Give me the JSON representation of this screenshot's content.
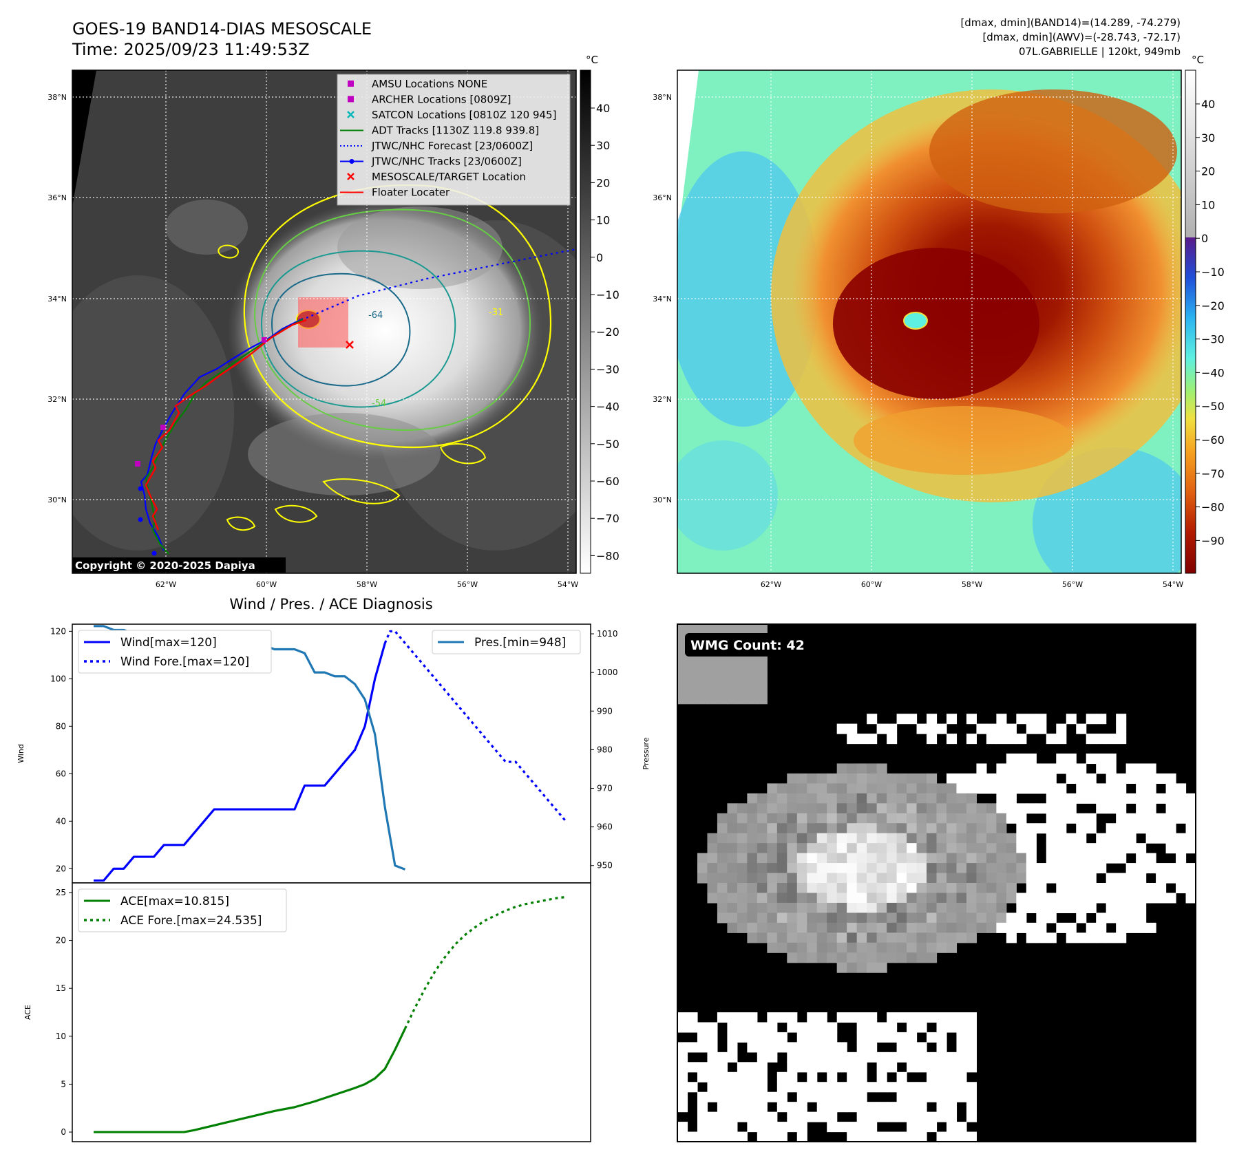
{
  "header": {
    "title_line1": "GOES-19 BAND14-DIAS MESOSCALE",
    "title_line2": "Time: 2025/09/23 11:49:53Z",
    "info_line1": "[dmax, dmin](BAND14)=(14.289, -74.279)",
    "info_line2": "[dmax, dmin](AWV)=(-28.743, -72.17)",
    "info_line3": "07L.GABRIELLE | 120kt, 949mb"
  },
  "map": {
    "lat_ticks": [
      "38°N",
      "36°N",
      "34°N",
      "32°N",
      "30°N"
    ],
    "lon_ticks": [
      "62°W",
      "60°W",
      "58°W",
      "56°W",
      "54°W"
    ],
    "copyright": "Copyright © 2020-2025 Dapiya",
    "colorbar_unit": "°C",
    "colorbar_ticks_left": [
      "40",
      "30",
      "20",
      "10",
      "0",
      "−10",
      "−20",
      "−30",
      "−40",
      "−50",
      "−60",
      "−70",
      "−80"
    ],
    "colorbar_ticks_right": [
      "40",
      "30",
      "20",
      "10",
      "0",
      "−10",
      "−20",
      "−30",
      "−40",
      "−50",
      "−60",
      "−70",
      "−80",
      "−90"
    ],
    "contour_label_1": "-64",
    "contour_label_2": "-31",
    "contour_label_3": "-54",
    "legend": [
      {
        "label": "AMSU Locations NONE",
        "color": "#c000c0",
        "marker": "square"
      },
      {
        "label": "ARCHER Locations [0809Z]",
        "color": "#c000c0",
        "marker": "square"
      },
      {
        "label": "SATCON Locations [0810Z 120 945]",
        "color": "#00b8b8",
        "marker": "x"
      },
      {
        "label": "ADT Tracks [1130Z 119.8 939.8]",
        "color": "#008000",
        "marker": "line"
      },
      {
        "label": "JTWC/NHC Forecast [23/0600Z]",
        "color": "#0000ff",
        "marker": "dotted"
      },
      {
        "label": "JTWC/NHC Tracks [23/0600Z]",
        "color": "#0000ff",
        "marker": "line-dot"
      },
      {
        "label": "MESOSCALE/TARGET Location",
        "color": "#ff0000",
        "marker": "x"
      },
      {
        "label": "Floater Locater",
        "color": "#ff0000",
        "marker": "line"
      }
    ]
  },
  "diagnosis": {
    "title": "Wind / Pres. / ACE Diagnosis",
    "wind_ylabel": "Wind",
    "pres_ylabel": "Pressure",
    "ace_ylabel": "ACE",
    "wind_ticks": [
      "20",
      "40",
      "60",
      "80",
      "100",
      "120"
    ],
    "pres_ticks": [
      "950",
      "960",
      "970",
      "980",
      "990",
      "1000",
      "1010"
    ],
    "ace_ticks": [
      "0",
      "5",
      "10",
      "15",
      "20",
      "25"
    ],
    "legend_wind": "Wind[max=120]",
    "legend_wind_fore": "Wind Fore.[max=120]",
    "legend_pres": "Pres.[min=948]",
    "legend_ace": "ACE[max=10.815]",
    "legend_ace_fore": "ACE Fore.[max=24.535]"
  },
  "wmg": {
    "label": "WMG Count: 42"
  },
  "chart_data": [
    {
      "type": "line",
      "title": "Wind / Pres. / ACE Diagnosis",
      "ylabel": "Wind",
      "ylim": [
        14,
        123
      ],
      "series": [
        {
          "name": "Wind[max=120]",
          "color": "#0000ff",
          "style": "solid",
          "x": [
            0,
            1,
            2,
            3,
            4,
            5,
            6,
            7,
            8,
            9,
            10,
            11,
            12,
            13,
            14,
            15,
            16,
            17,
            18,
            19,
            20,
            21,
            22,
            23,
            24,
            25,
            26,
            27,
            28,
            29
          ],
          "values": [
            15,
            15,
            20,
            20,
            25,
            25,
            25,
            30,
            30,
            30,
            35,
            40,
            45,
            45,
            45,
            45,
            45,
            45,
            45,
            45,
            45,
            55,
            55,
            55,
            60,
            65,
            70,
            80,
            100,
            115
          ]
        },
        {
          "name": "Wind Fore.[max=120]",
          "color": "#0000ff",
          "style": "dotted",
          "x": [
            29,
            29.5,
            30,
            31,
            32,
            33,
            34,
            35,
            36,
            37,
            38,
            39,
            40,
            41,
            42,
            43,
            44,
            45,
            46,
            47
          ],
          "values": [
            115,
            120,
            120,
            115,
            110,
            105,
            100,
            95,
            90,
            85,
            80,
            75,
            70,
            65,
            65,
            60,
            55,
            50,
            45,
            40
          ]
        }
      ]
    },
    {
      "type": "line",
      "ylabel": "Pressure",
      "ylim": [
        945.5,
        1012.5
      ],
      "series": [
        {
          "name": "Pres.[min=948]",
          "color": "#1f77b4",
          "style": "solid",
          "x": [
            0,
            1,
            2,
            3,
            4,
            5,
            6,
            7,
            8,
            9,
            10,
            11,
            12,
            13,
            14,
            15,
            16,
            17,
            18,
            19,
            20,
            21,
            22,
            23,
            24,
            25,
            26,
            27,
            28,
            29,
            30,
            31
          ],
          "values": [
            1012,
            1012,
            1011,
            1011,
            1010,
            1009,
            1008,
            1008,
            1007,
            1007,
            1007,
            1007,
            1007,
            1007,
            1007,
            1007,
            1007,
            1007,
            1006,
            1006,
            1006,
            1005,
            1000,
            1000,
            999,
            999,
            997,
            993,
            984,
            965,
            950,
            949
          ]
        }
      ]
    },
    {
      "type": "line",
      "ylabel": "ACE",
      "ylim": [
        -1,
        26
      ],
      "series": [
        {
          "name": "ACE[max=10.815]",
          "color": "#008000",
          "style": "solid",
          "x": [
            0,
            4,
            8,
            9,
            10,
            12,
            14,
            16,
            18,
            20,
            22,
            24,
            26,
            27,
            28,
            29,
            30,
            31
          ],
          "values": [
            0,
            0,
            0,
            0,
            0.2,
            0.7,
            1.2,
            1.7,
            2.2,
            2.6,
            3.2,
            3.9,
            4.6,
            5.0,
            5.6,
            6.6,
            8.6,
            10.8
          ]
        },
        {
          "name": "ACE Fore.[max=24.535]",
          "color": "#008000",
          "style": "dotted",
          "x": [
            31,
            32,
            33,
            34,
            35,
            36,
            37,
            38,
            39,
            40,
            41,
            42,
            43,
            44,
            45,
            46,
            47
          ],
          "values": [
            10.8,
            13.0,
            15.0,
            16.8,
            18.3,
            19.6,
            20.6,
            21.4,
            22.1,
            22.6,
            23.1,
            23.5,
            23.8,
            24.0,
            24.2,
            24.4,
            24.535
          ]
        }
      ]
    }
  ]
}
